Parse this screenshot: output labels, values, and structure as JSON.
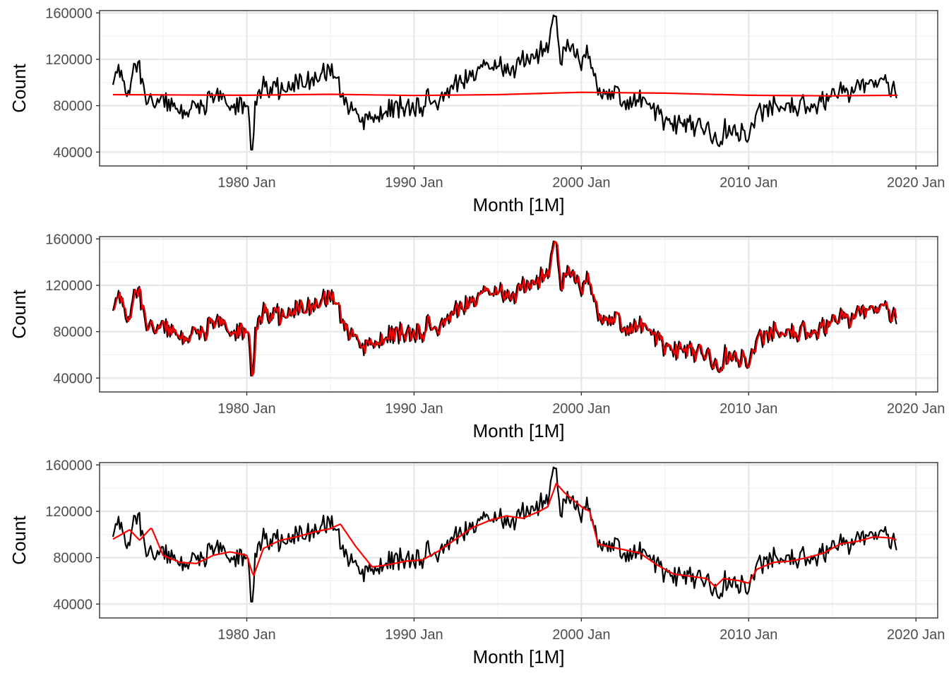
{
  "chart_data": [
    {
      "type": "line",
      "title": "",
      "xlabel": "Month [1M]",
      "ylabel": "Count",
      "x_range": [
        "1972 Jan",
        "2018 Dec"
      ],
      "xlim": [
        1971.2,
        2021.3
      ],
      "ylim": [
        28000,
        162000
      ],
      "x_ticks": [
        1980,
        1990,
        2000,
        2010,
        2020
      ],
      "x_tick_labels": [
        "1980 Jan",
        "1990 Jan",
        "2000 Jan",
        "2010 Jan",
        "2020 Jan"
      ],
      "y_ticks": [
        40000,
        80000,
        120000,
        160000
      ],
      "y_tick_labels": [
        "40000",
        "80000",
        "120000",
        "160000"
      ],
      "grid": true,
      "legend": "none",
      "series": [
        {
          "role": "observed",
          "color": "#000000",
          "x": [
            1972.0,
            1972.3,
            1972.6,
            1973.0,
            1973.3,
            1973.6,
            1974.0,
            1974.5,
            1975.0,
            1975.5,
            1976.0,
            1976.5,
            1977.0,
            1977.5,
            1978.0,
            1978.5,
            1979.0,
            1979.5,
            1980.0,
            1980.15,
            1980.3,
            1980.5,
            1981.0,
            1981.5,
            1982.0,
            1982.5,
            1983.0,
            1983.5,
            1984.0,
            1984.5,
            1985.0,
            1985.5,
            1986.0,
            1986.5,
            1987.0,
            1987.5,
            1988.0,
            1988.5,
            1989.0,
            1989.5,
            1990.0,
            1990.5,
            1991.0,
            1991.5,
            1992.0,
            1992.5,
            1993.0,
            1993.5,
            1994.0,
            1994.5,
            1995.0,
            1995.5,
            1996.0,
            1996.5,
            1997.0,
            1997.5,
            1998.0,
            1998.4,
            1998.8,
            1999.2,
            1999.6,
            2000.0,
            2000.4,
            2000.8,
            2001.2,
            2001.6,
            2002.0,
            2002.5,
            2003.0,
            2003.5,
            2004.0,
            2004.5,
            2005.0,
            2005.5,
            2006.0,
            2006.5,
            2007.0,
            2007.5,
            2008.0,
            2008.3,
            2008.6,
            2009.0,
            2009.5,
            2010.0,
            2010.5,
            2011.0,
            2011.5,
            2012.0,
            2012.5,
            2013.0,
            2013.5,
            2014.0,
            2014.5,
            2015.0,
            2015.5,
            2016.0,
            2016.5,
            2017.0,
            2017.5,
            2018.0,
            2018.5,
            2018.9
          ],
          "y": [
            95000,
            117000,
            100000,
            88000,
            122000,
            110000,
            80000,
            82000,
            88000,
            78000,
            76000,
            75000,
            80000,
            78000,
            90000,
            88000,
            82000,
            78000,
            80000,
            72000,
            34000,
            80000,
            98000,
            94000,
            96000,
            94000,
            98000,
            105000,
            102000,
            108000,
            110000,
            100000,
            80000,
            76000,
            65000,
            70000,
            72000,
            80000,
            78000,
            77000,
            78000,
            80000,
            88000,
            84000,
            92000,
            100000,
            102000,
            105000,
            112000,
            110000,
            118000,
            115000,
            112000,
            118000,
            122000,
            125000,
            130000,
            157000,
            120000,
            132000,
            130000,
            118000,
            128000,
            100000,
            88000,
            88000,
            90000,
            86000,
            84000,
            84000,
            80000,
            72000,
            66000,
            62000,
            66000,
            62000,
            64000,
            60000,
            52000,
            46000,
            60000,
            60000,
            58000,
            56000,
            72000,
            76000,
            80000,
            78000,
            76000,
            80000,
            82000,
            80000,
            84000,
            92000,
            94000,
            92000,
            96000,
            98000,
            100000,
            104000,
            94000,
            92000
          ]
        },
        {
          "role": "fitted",
          "color": "#ff0000",
          "x": [
            1972.0,
            1980.0,
            1985.0,
            1990.0,
            1995.0,
            2000.0,
            2005.0,
            2010.0,
            2015.0,
            2018.9
          ],
          "y": [
            89500,
            89000,
            89800,
            88800,
            89500,
            91500,
            90800,
            89000,
            88500,
            89000
          ]
        }
      ]
    },
    {
      "type": "line",
      "title": "",
      "xlabel": "Month [1M]",
      "ylabel": "Count",
      "xlim": [
        1971.2,
        2021.3
      ],
      "ylim": [
        28000,
        162000
      ],
      "x_ticks": [
        1980,
        1990,
        2000,
        2010,
        2020
      ],
      "x_tick_labels": [
        "1980 Jan",
        "1990 Jan",
        "2000 Jan",
        "2010 Jan",
        "2020 Jan"
      ],
      "y_ticks": [
        40000,
        80000,
        120000,
        160000
      ],
      "y_tick_labels": [
        "40000",
        "80000",
        "120000",
        "160000"
      ],
      "grid": true,
      "legend": "none",
      "series": [
        {
          "role": "observed",
          "color": "#000000",
          "same_as": "chart_data.0.series.0"
        },
        {
          "role": "fitted",
          "color": "#ff0000",
          "same_as_observed_with_lag": 1
        }
      ]
    },
    {
      "type": "line",
      "title": "",
      "xlabel": "Month [1M]",
      "ylabel": "Count",
      "xlim": [
        1971.2,
        2021.3
      ],
      "ylim": [
        28000,
        162000
      ],
      "x_ticks": [
        1980,
        1990,
        2000,
        2010,
        2020
      ],
      "x_tick_labels": [
        "1980 Jan",
        "1990 Jan",
        "2000 Jan",
        "2010 Jan",
        "2020 Jan"
      ],
      "y_ticks": [
        40000,
        80000,
        120000,
        160000
      ],
      "y_tick_labels": [
        "40000",
        "80000",
        "120000",
        "160000"
      ],
      "grid": true,
      "legend": "none",
      "series": [
        {
          "role": "observed",
          "color": "#000000",
          "same_as": "chart_data.0.series.0"
        },
        {
          "role": "fitted",
          "color": "#ff0000",
          "x": [
            1972.0,
            1973.0,
            1973.6,
            1974.3,
            1975.0,
            1976.0,
            1977.0,
            1978.0,
            1979.0,
            1980.0,
            1980.4,
            1981.0,
            1982.0,
            1983.0,
            1984.0,
            1985.0,
            1985.6,
            1986.5,
            1987.5,
            1988.5,
            1989.5,
            1990.5,
            1991.5,
            1992.5,
            1993.5,
            1994.5,
            1995.5,
            1996.5,
            1997.5,
            1998.0,
            1998.5,
            1999.0,
            1999.5,
            2000.0,
            2000.5,
            2001.0,
            2001.5,
            2002.5,
            2003.5,
            2004.5,
            2005.5,
            2006.5,
            2007.5,
            2008.0,
            2008.5,
            2009.5,
            2010.0,
            2010.5,
            2011.5,
            2012.5,
            2013.5,
            2014.5,
            2015.5,
            2016.5,
            2017.5,
            2018.5,
            2018.9
          ],
          "y": [
            96000,
            104000,
            95000,
            106000,
            82000,
            76000,
            75000,
            82000,
            85000,
            82000,
            64000,
            88000,
            95000,
            98000,
            102000,
            105000,
            109000,
            90000,
            72000,
            74000,
            77000,
            78000,
            86000,
            96000,
            106000,
            112000,
            116000,
            114000,
            120000,
            124000,
            144000,
            136000,
            130000,
            124000,
            120000,
            92000,
            90000,
            87000,
            84000,
            74000,
            66000,
            64000,
            62000,
            55000,
            62000,
            60000,
            58000,
            70000,
            76000,
            77000,
            80000,
            84000,
            92000,
            94000,
            98000,
            97000,
            95000
          ]
        }
      ]
    }
  ]
}
